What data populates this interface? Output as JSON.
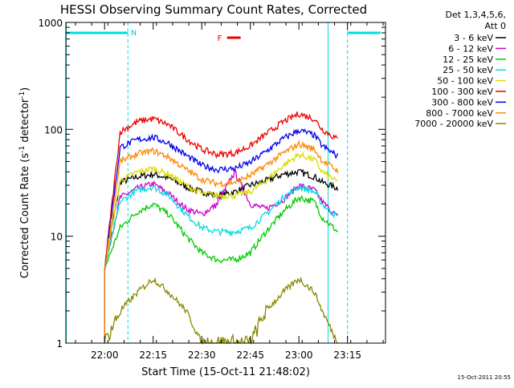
{
  "chart_data": {
    "type": "line",
    "title": "HESSI Observing Summary Count Rates, Corrected",
    "xlabel": "Start Time (15-Oct-11 21:48:02)",
    "ylabel_main": "Corrected Count Rate (s",
    "ylabel_sup1": "-1",
    "ylabel_mid": " detector",
    "ylabel_sup2": "-1",
    "ylabel_end": ")",
    "yscale": "log",
    "ylim": [
      1,
      1000
    ],
    "xlim": [
      21.8006,
      23.4456
    ],
    "yticks": [
      {
        "value": 1,
        "label": "1"
      },
      {
        "value": 10,
        "label": "10"
      },
      {
        "value": 100,
        "label": "100"
      },
      {
        "value": 1000,
        "label": "1000"
      }
    ],
    "xticks": [
      {
        "value": 22.0,
        "label": "22:00"
      },
      {
        "value": 22.25,
        "label": "22:15"
      },
      {
        "value": 22.5,
        "label": "22:30"
      },
      {
        "value": 22.75,
        "label": "22:45"
      },
      {
        "value": 23.0,
        "label": "23:00"
      },
      {
        "value": 23.25,
        "label": "23:15"
      }
    ],
    "legend_header": [
      "Det 1,3,4,5,6,",
      "Att 0"
    ],
    "series": [
      {
        "name": "3 - 6 keV",
        "color": "#000000",
        "x": [
          22.0,
          22.08,
          22.17,
          22.25,
          22.33,
          22.42,
          22.5,
          22.58,
          22.67,
          22.75,
          22.83,
          22.92,
          23.0,
          23.08,
          23.12,
          23.2
        ],
        "y": [
          5,
          32,
          36,
          38,
          35,
          29,
          26,
          24,
          26,
          30,
          33,
          38,
          40,
          36,
          32,
          28
        ]
      },
      {
        "name": "6 - 12 keV",
        "color": "#cc00cc",
        "x": [
          22.0,
          22.08,
          22.17,
          22.25,
          22.33,
          22.42,
          22.5,
          22.58,
          22.67,
          22.75,
          22.83,
          22.92,
          23.0,
          23.08,
          23.12,
          23.2
        ],
        "y": [
          5,
          23,
          28,
          31,
          25,
          18,
          16,
          20,
          40,
          20,
          18,
          22,
          30,
          27,
          21,
          15
        ]
      },
      {
        "name": "12 - 25 keV",
        "color": "#00cc00",
        "x": [
          22.0,
          22.08,
          22.17,
          22.25,
          22.33,
          22.42,
          22.5,
          22.58,
          22.67,
          22.75,
          22.83,
          22.92,
          23.0,
          23.08,
          23.12,
          23.2
        ],
        "y": [
          5,
          12,
          17,
          20,
          16,
          10,
          7,
          6,
          6,
          7,
          11,
          17,
          23,
          21,
          15,
          11
        ]
      },
      {
        "name": "25 - 50 keV",
        "color": "#00dddd",
        "x": [
          22.0,
          22.08,
          22.17,
          22.25,
          22.33,
          22.42,
          22.5,
          22.58,
          22.67,
          22.75,
          22.83,
          22.92,
          23.0,
          23.08,
          23.12,
          23.2
        ],
        "y": [
          5,
          21,
          27,
          29,
          24,
          16,
          12,
          11,
          11,
          12,
          16,
          23,
          29,
          26,
          20,
          15
        ]
      },
      {
        "name": "50 - 100 keV",
        "color": "#dddd00",
        "x": [
          22.0,
          22.08,
          22.17,
          22.25,
          22.33,
          22.42,
          22.5,
          22.58,
          22.67,
          22.75,
          22.83,
          22.92,
          23.0,
          23.08,
          23.12,
          23.2
        ],
        "y": [
          5,
          33,
          40,
          43,
          38,
          30,
          25,
          24,
          24,
          26,
          33,
          46,
          58,
          52,
          40,
          32
        ]
      },
      {
        "name": "100 - 300 keV",
        "color": "#ee0000",
        "x": [
          22.0,
          22.08,
          22.17,
          22.25,
          22.33,
          22.42,
          22.5,
          22.58,
          22.67,
          22.75,
          22.83,
          22.92,
          23.0,
          23.08,
          23.12,
          23.2
        ],
        "y": [
          5,
          95,
          118,
          126,
          110,
          82,
          65,
          58,
          60,
          70,
          90,
          118,
          140,
          125,
          100,
          80
        ]
      },
      {
        "name": "300 - 800 keV",
        "color": "#0000ee",
        "x": [
          22.0,
          22.08,
          22.17,
          22.25,
          22.33,
          22.42,
          22.5,
          22.58,
          22.67,
          22.75,
          22.83,
          22.92,
          23.0,
          23.08,
          23.12,
          23.2
        ],
        "y": [
          5,
          68,
          80,
          84,
          74,
          57,
          46,
          42,
          43,
          49,
          62,
          82,
          98,
          88,
          70,
          56
        ]
      },
      {
        "name": "800 - 7000 keV",
        "color": "#ff8800",
        "x": [
          22.0,
          22.08,
          22.17,
          22.25,
          22.33,
          22.42,
          22.5,
          22.58,
          22.67,
          22.75,
          22.83,
          22.92,
          23.0,
          23.08,
          23.12,
          23.2
        ],
        "y": [
          5,
          50,
          59,
          63,
          55,
          42,
          34,
          31,
          32,
          37,
          46,
          60,
          73,
          65,
          51,
          41
        ]
      },
      {
        "name": "7000 - 20000 keV",
        "color": "#888800",
        "x": [
          22.0,
          22.08,
          22.17,
          22.25,
          22.33,
          22.42,
          22.5,
          22.58,
          22.67,
          22.75,
          22.83,
          22.92,
          23.0,
          23.08,
          23.12,
          23.2
        ],
        "y": [
          1,
          2,
          3,
          4,
          3,
          2,
          1,
          1,
          1,
          1,
          2,
          3,
          4,
          3,
          2,
          1
        ]
      }
    ],
    "annotations": {
      "flare_label": "F",
      "flare_x": [
        22.63,
        22.7
      ],
      "night_label": "N",
      "night_intervals": [
        [
          21.8006,
          22.12
        ],
        [
          23.25,
          23.42
        ]
      ],
      "saa_lines": [
        22.12,
        23.25
      ],
      "data_gaps_solid": [
        21.8006,
        23.15
      ]
    },
    "timestamp": "15-Oct-2011 20:55"
  }
}
